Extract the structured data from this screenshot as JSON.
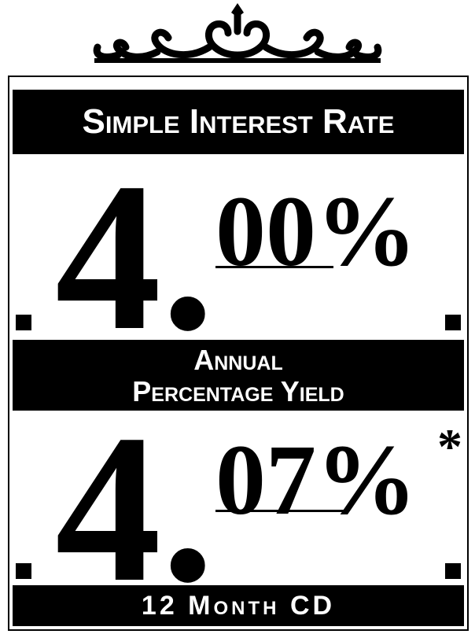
{
  "rate": {
    "heading": "Simple Interest Rate",
    "whole": "4.",
    "fraction": "00%"
  },
  "yield": {
    "heading_line1": "Annual",
    "heading_line2": "Percentage Yield",
    "whole": "4.",
    "fraction": "07%",
    "footnote_mark": "*"
  },
  "term": "12 Month CD"
}
